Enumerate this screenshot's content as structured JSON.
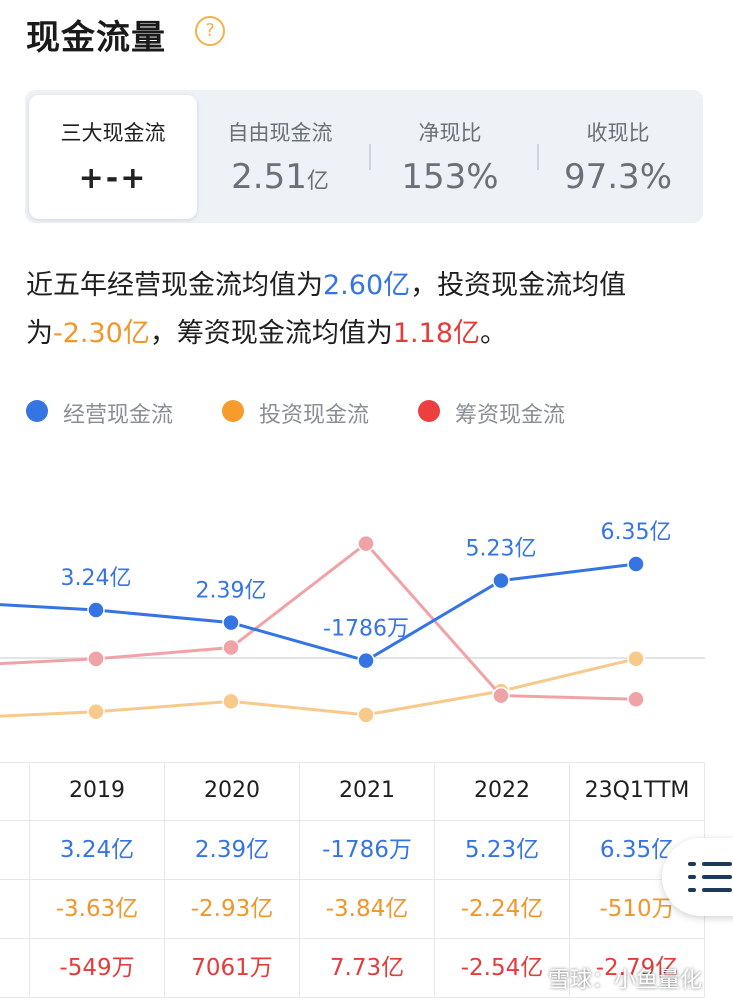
{
  "header": {
    "title": "现金流量",
    "help_icon": "?"
  },
  "metrics": {
    "tab": {
      "label": "三大现金流",
      "value": "+-+"
    },
    "items": [
      {
        "label": "自由现金流",
        "value": "2.51",
        "unit": "亿"
      },
      {
        "label": "净现比",
        "value": "153%",
        "unit": ""
      },
      {
        "label": "收现比",
        "value": "97.3%",
        "unit": ""
      }
    ]
  },
  "summary": {
    "p1": "近五年经营现金流均值为",
    "v1": "2.60亿",
    "p2": "，投资现金流均值为",
    "v2": "-2.30亿",
    "p3": "，筹资现金流均值为",
    "v3": "1.18亿",
    "p4": "。"
  },
  "legend": [
    {
      "label": "经营现金流",
      "color": "#3574e3"
    },
    {
      "label": "投资现金流",
      "color": "#f59c2c"
    },
    {
      "label": "筹资现金流",
      "color": "#ec4040"
    }
  ],
  "chart_data": {
    "type": "line",
    "categories": [
      "2019",
      "2020",
      "2021",
      "2022",
      "23Q1TTM"
    ],
    "series": [
      {
        "name": "经营现金流",
        "values": [
          3.24,
          2.39,
          -0.1786,
          5.23,
          6.35
        ],
        "labels": [
          "3.24亿",
          "2.39亿",
          "-1786万",
          "5.23亿",
          "6.35亿"
        ],
        "color": "#3574e3"
      },
      {
        "name": "投资现金流",
        "values": [
          -3.63,
          -2.93,
          -3.84,
          -2.24,
          -0.051
        ],
        "color": "#f7c98a"
      },
      {
        "name": "筹资现金流",
        "values": [
          -0.0549,
          0.7061,
          7.73,
          -2.54,
          -2.79
        ],
        "color": "#f0a3a6"
      }
    ],
    "ylim": [
      -4.5,
      7.5
    ],
    "zero_line": true
  },
  "table": {
    "headers": [
      "2019",
      "2020",
      "2021",
      "2022",
      "23Q1TTM"
    ],
    "rows": [
      {
        "cells": [
          "3.24亿",
          "2.39亿",
          "-1786万",
          "5.23亿",
          "6.35亿"
        ],
        "color": "#3574e3"
      },
      {
        "cells": [
          "-3.63亿",
          "-2.93亿",
          "-3.84亿",
          "-2.24亿",
          "-510万"
        ],
        "color": "#f0962a"
      },
      {
        "cells": [
          "-549万",
          "7061万",
          "7.73亿",
          "-2.54亿",
          "-2.79亿"
        ],
        "color": "#e43b3b"
      }
    ]
  },
  "fab": {
    "icon": "list-icon"
  },
  "watermark": "雪球：小鱼量化"
}
